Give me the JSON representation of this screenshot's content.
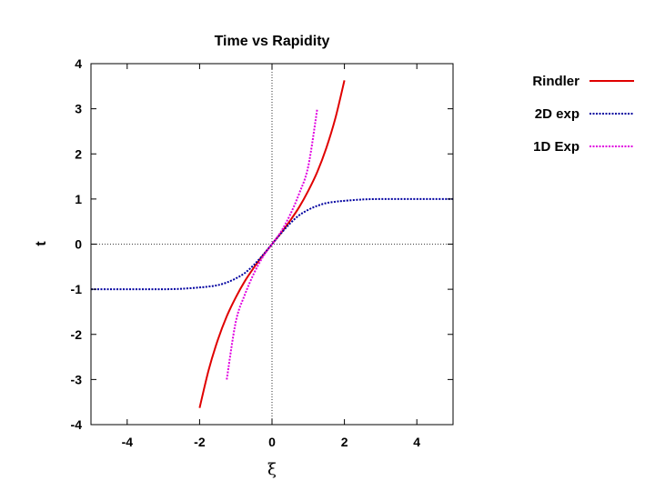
{
  "chart_data": {
    "type": "line",
    "title": "Time vs Rapidity",
    "xlabel": "ξ",
    "ylabel": "t",
    "xlim": [
      -5,
      5
    ],
    "ylim": [
      -4,
      4
    ],
    "xticks": [
      -4,
      -2,
      0,
      2,
      4
    ],
    "yticks": [
      -4,
      -3,
      -2,
      -1,
      0,
      1,
      2,
      3,
      4
    ],
    "grid": false,
    "zero_lines": true,
    "legend_position": "outside-right",
    "x": [
      -5.0,
      -4.5,
      -4.0,
      -3.5,
      -3.0,
      -2.5,
      -2.0,
      -1.75,
      -1.5,
      -1.25,
      -1.0,
      -0.75,
      -0.5,
      -0.25,
      0.0,
      0.25,
      0.5,
      0.75,
      1.0,
      1.25,
      1.5,
      1.75,
      2.0,
      2.5,
      3.0,
      3.5,
      4.0,
      4.5,
      5.0
    ],
    "series": [
      {
        "name": "Rindler",
        "color": "#e00000",
        "style": "solid",
        "values": [
          null,
          null,
          null,
          null,
          null,
          null,
          -3.63,
          -2.79,
          -2.13,
          -1.6,
          -1.18,
          -0.82,
          -0.52,
          -0.25,
          0.0,
          0.25,
          0.52,
          0.82,
          1.18,
          1.6,
          2.13,
          2.79,
          3.63,
          null,
          null,
          null,
          null,
          null,
          null
        ]
      },
      {
        "name": "2D exp",
        "color": "#0000a0",
        "style": "dotted",
        "values": [
          -1.0,
          -1.0,
          -1.0,
          -1.0,
          -1.0,
          -0.99,
          -0.96,
          -0.94,
          -0.91,
          -0.85,
          -0.76,
          -0.64,
          -0.46,
          -0.24,
          0.0,
          0.24,
          0.46,
          0.64,
          0.76,
          0.85,
          0.91,
          0.94,
          0.96,
          0.99,
          1.0,
          1.0,
          1.0,
          1.0,
          1.0
        ]
      },
      {
        "name": "1D Exp",
        "color": "#e000e0",
        "style": "dotted",
        "values": [
          null,
          null,
          null,
          null,
          null,
          null,
          null,
          null,
          null,
          -3.0,
          -1.72,
          -1.12,
          -0.65,
          -0.28,
          0.0,
          0.28,
          0.65,
          1.12,
          1.72,
          3.0,
          null,
          null,
          null,
          null,
          null,
          null,
          null,
          null,
          null
        ]
      }
    ]
  }
}
